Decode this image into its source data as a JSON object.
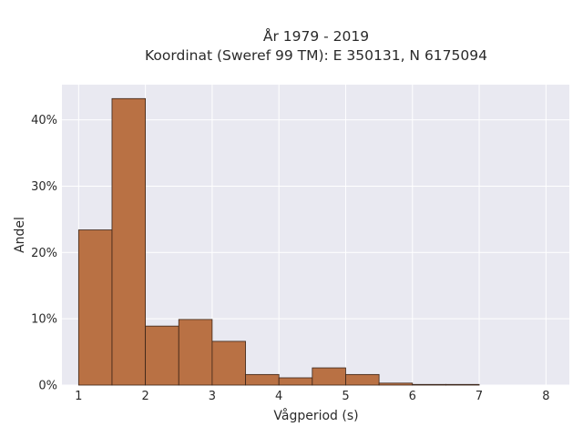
{
  "chart_data": {
    "type": "bar",
    "title_line1": "År 1979 - 2019",
    "title_line2": "Koordinat (Sweref 99 TM): E 350131, N 6175094",
    "xlabel": "Vågperiod (s)",
    "ylabel": "Andel",
    "xlim": [
      0.75,
      8.35
    ],
    "ylim": [
      0,
      45.3
    ],
    "x_ticks": [
      1,
      2,
      3,
      4,
      5,
      6,
      7,
      8
    ],
    "y_ticks": [
      0,
      10,
      20,
      30,
      40
    ],
    "y_tick_labels": [
      "0%",
      "10%",
      "20%",
      "30%",
      "40%"
    ],
    "bin_width": 0.5,
    "bins": [
      {
        "x0": 1.0,
        "value": 23.4
      },
      {
        "x0": 1.5,
        "value": 43.2
      },
      {
        "x0": 2.0,
        "value": 8.9
      },
      {
        "x0": 2.5,
        "value": 9.9
      },
      {
        "x0": 3.0,
        "value": 6.6
      },
      {
        "x0": 3.5,
        "value": 1.6
      },
      {
        "x0": 4.0,
        "value": 1.1
      },
      {
        "x0": 4.5,
        "value": 2.6
      },
      {
        "x0": 5.0,
        "value": 1.6
      },
      {
        "x0": 5.5,
        "value": 0.3
      },
      {
        "x0": 6.0,
        "value": 0.1
      },
      {
        "x0": 6.5,
        "value": 0.1
      }
    ],
    "grid": true,
    "colors": {
      "bar_fill": "#b97144",
      "bar_edge": "#3a2418",
      "plot_bg": "#e9e9f1",
      "grid": "#ffffff"
    }
  }
}
